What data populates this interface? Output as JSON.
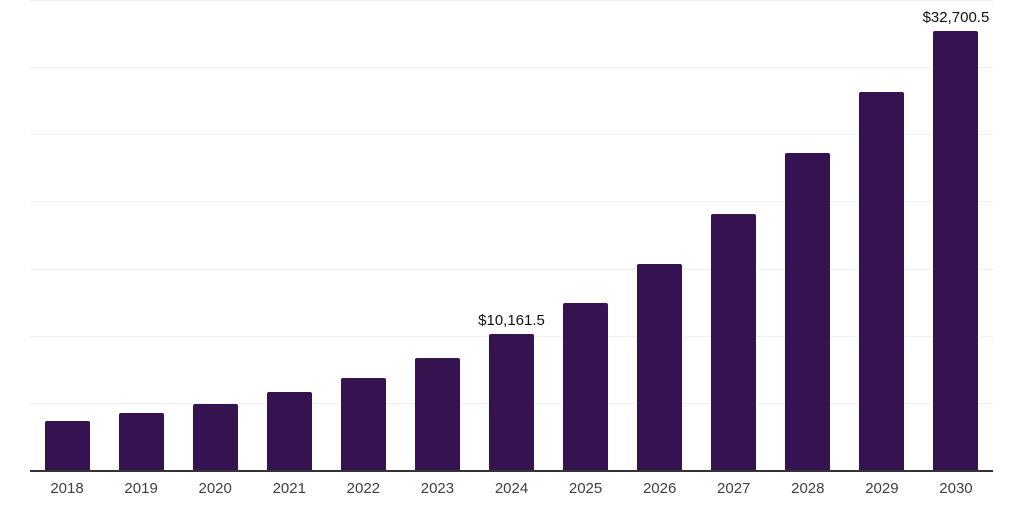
{
  "chart_data": {
    "type": "bar",
    "title": "",
    "xlabel": "",
    "ylabel": "",
    "categories": [
      "2018",
      "2019",
      "2020",
      "2021",
      "2022",
      "2023",
      "2024",
      "2025",
      "2026",
      "2027",
      "2028",
      "2029",
      "2030"
    ],
    "values": [
      3650,
      4250,
      4900,
      5800,
      6850,
      8350,
      10161.5,
      12450,
      15350,
      19050,
      23600,
      28150,
      32700.5
    ],
    "bar_labels": {
      "2024": "$10,161.5",
      "2030": "$32,700.5"
    },
    "ylim": [
      0,
      35000
    ],
    "gridline_step": 5000,
    "grid": true,
    "legend": "none",
    "colors": {
      "bar": "#351250",
      "axis_line": "#333333",
      "gridline": "#f0f0f0",
      "tick_label": "#404040",
      "value_label": "#111111",
      "background": "#ffffff"
    }
  }
}
